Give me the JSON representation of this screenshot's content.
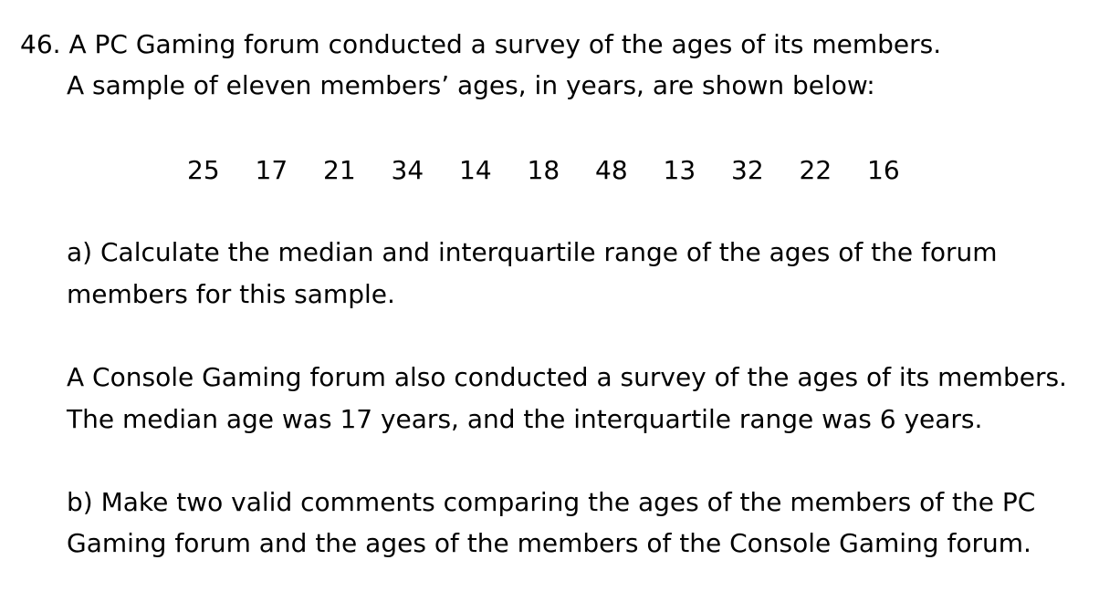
{
  "question": {
    "number": "46.",
    "intro_line_1": "A PC Gaming forum conducted a survey of the ages of its members.",
    "intro_line_2": "A sample of eleven members’ ages, in years, are shown below:",
    "ages": [
      "25",
      "17",
      "21",
      "34",
      "14",
      "18",
      "48",
      "13",
      "32",
      "22",
      "16"
    ],
    "part_a_line_1": "a) Calculate the median and interquartile range of the ages of the forum",
    "part_a_line_2": "members for this sample.",
    "console_line_1": "A Console Gaming forum also conducted a survey of the ages of its members.",
    "console_line_2": "The median age was 17 years, and the interquartile range was 6 years.",
    "part_b_line_1": "b) Make two valid comments comparing the ages of the members of the PC",
    "part_b_line_2": "Gaming forum and the ages of the members of the Console Gaming forum."
  }
}
